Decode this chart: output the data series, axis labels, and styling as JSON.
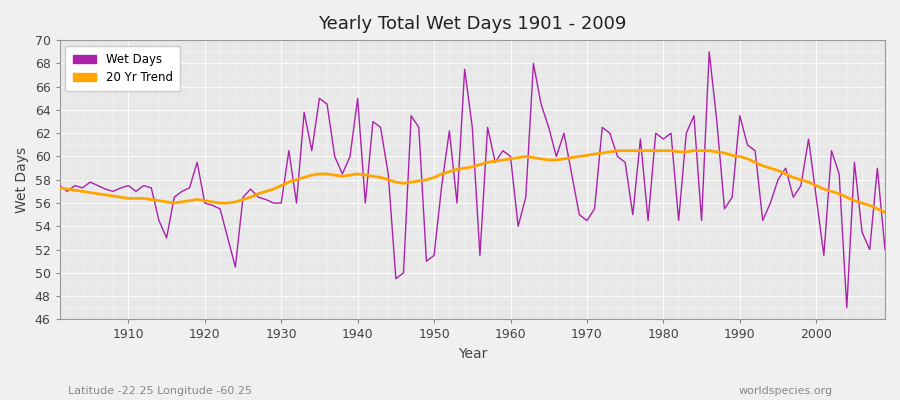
{
  "title": "Yearly Total Wet Days 1901 - 2009",
  "xlabel": "Year",
  "ylabel": "Wet Days",
  "subtitle": "Latitude -22.25 Longitude -60.25",
  "watermark": "worldspecies.org",
  "ylim": [
    46,
    70
  ],
  "yticks": [
    46,
    48,
    50,
    52,
    54,
    56,
    58,
    60,
    62,
    64,
    66,
    68,
    70
  ],
  "wet_days_color": "#aa22aa",
  "trend_color": "#ffa500",
  "fig_bg_color": "#f0f0f0",
  "plot_bg_color": "#e8e8e8",
  "years": [
    1901,
    1902,
    1903,
    1904,
    1905,
    1906,
    1907,
    1908,
    1909,
    1910,
    1911,
    1912,
    1913,
    1914,
    1915,
    1916,
    1917,
    1918,
    1919,
    1920,
    1921,
    1922,
    1923,
    1924,
    1925,
    1926,
    1927,
    1928,
    1929,
    1930,
    1931,
    1932,
    1933,
    1934,
    1935,
    1936,
    1937,
    1938,
    1939,
    1940,
    1941,
    1942,
    1943,
    1944,
    1945,
    1946,
    1947,
    1948,
    1949,
    1950,
    1951,
    1952,
    1953,
    1954,
    1955,
    1956,
    1957,
    1958,
    1959,
    1960,
    1961,
    1962,
    1963,
    1964,
    1965,
    1966,
    1967,
    1968,
    1969,
    1970,
    1971,
    1972,
    1973,
    1974,
    1975,
    1976,
    1977,
    1978,
    1979,
    1980,
    1981,
    1982,
    1983,
    1984,
    1985,
    1986,
    1987,
    1988,
    1989,
    1990,
    1991,
    1992,
    1993,
    1994,
    1995,
    1996,
    1997,
    1998,
    1999,
    2000,
    2001,
    2002,
    2003,
    2004,
    2005,
    2006,
    2007,
    2008,
    2009
  ],
  "wet_days": [
    57.5,
    57.0,
    57.5,
    57.3,
    57.8,
    57.5,
    57.2,
    57.0,
    57.3,
    57.5,
    57.0,
    57.5,
    57.3,
    54.5,
    53.0,
    56.5,
    57.0,
    57.3,
    59.5,
    56.0,
    55.8,
    55.5,
    53.0,
    50.5,
    56.5,
    57.2,
    56.5,
    56.3,
    56.0,
    56.0,
    60.5,
    56.0,
    63.8,
    60.5,
    65.0,
    64.5,
    60.0,
    58.5,
    60.0,
    65.0,
    56.0,
    63.0,
    62.5,
    58.5,
    49.5,
    50.0,
    63.5,
    62.5,
    51.0,
    51.5,
    57.5,
    62.2,
    56.0,
    67.5,
    62.5,
    51.5,
    62.5,
    59.5,
    60.5,
    60.0,
    54.0,
    56.5,
    68.0,
    64.5,
    62.5,
    60.0,
    62.0,
    58.5,
    55.0,
    54.5,
    55.5,
    62.5,
    62.0,
    60.0,
    59.5,
    55.0,
    61.5,
    54.5,
    62.0,
    61.5,
    62.0,
    54.5,
    62.0,
    63.5,
    54.5,
    69.0,
    63.0,
    55.5,
    56.5,
    63.5,
    61.0,
    60.5,
    54.5,
    56.0,
    58.0,
    59.0,
    56.5,
    57.5,
    61.5,
    56.5,
    51.5,
    60.5,
    58.5,
    47.0,
    59.5,
    53.5,
    52.0,
    59.0,
    52.0
  ],
  "trend": [
    57.3,
    57.2,
    57.1,
    57.0,
    56.9,
    56.8,
    56.7,
    56.6,
    56.5,
    56.4,
    56.4,
    56.4,
    56.3,
    56.2,
    56.1,
    56.0,
    56.1,
    56.2,
    56.3,
    56.2,
    56.1,
    56.0,
    56.0,
    56.1,
    56.3,
    56.5,
    56.8,
    57.0,
    57.2,
    57.5,
    57.8,
    58.0,
    58.2,
    58.4,
    58.5,
    58.5,
    58.4,
    58.3,
    58.4,
    58.5,
    58.4,
    58.3,
    58.2,
    58.0,
    57.8,
    57.7,
    57.8,
    57.9,
    58.0,
    58.2,
    58.5,
    58.7,
    58.9,
    59.0,
    59.1,
    59.3,
    59.5,
    59.6,
    59.7,
    59.8,
    59.9,
    60.0,
    59.9,
    59.8,
    59.7,
    59.7,
    59.8,
    59.9,
    60.0,
    60.1,
    60.2,
    60.3,
    60.4,
    60.5,
    60.5,
    60.5,
    60.5,
    60.5,
    60.5,
    60.5,
    60.5,
    60.4,
    60.4,
    60.5,
    60.5,
    60.5,
    60.4,
    60.3,
    60.1,
    60.0,
    59.8,
    59.5,
    59.2,
    59.0,
    58.8,
    58.5,
    58.2,
    58.0,
    57.8,
    57.5,
    57.2,
    57.0,
    56.8,
    56.5,
    56.2,
    56.0,
    55.8,
    55.5,
    55.2
  ]
}
